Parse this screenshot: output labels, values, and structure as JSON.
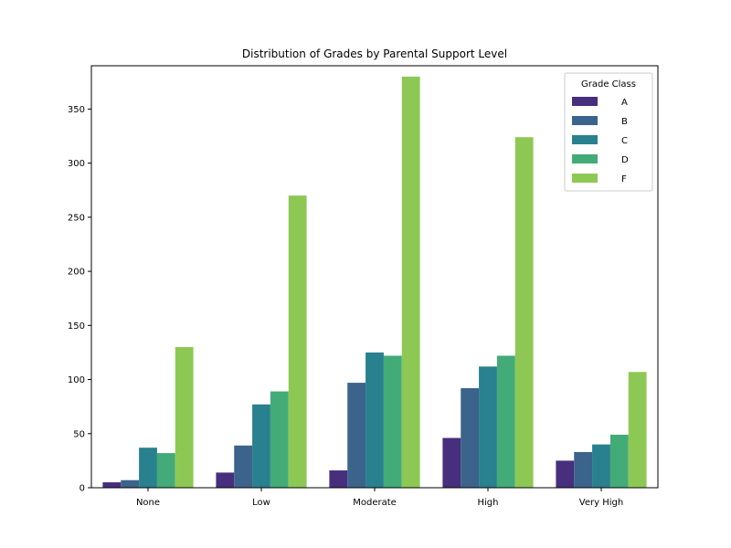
{
  "chart_data": {
    "type": "bar",
    "title": "Distribution of Grades by Parental Support Level",
    "xlabel": "",
    "ylabel": "",
    "categories": [
      "None",
      "Low",
      "Moderate",
      "High",
      "Very High"
    ],
    "ylim": [
      0,
      390
    ],
    "yticks": [
      0,
      50,
      100,
      150,
      200,
      250,
      300,
      350
    ],
    "grid": false,
    "legend": {
      "title": "Grade Class",
      "placement": "top-right"
    },
    "series": [
      {
        "name": "A",
        "color": "#472f7d",
        "values": [
          5,
          14,
          16,
          46,
          25
        ]
      },
      {
        "name": "B",
        "color": "#3b638c",
        "values": [
          7,
          39,
          97,
          92,
          33
        ]
      },
      {
        "name": "C",
        "color": "#29808e",
        "values": [
          37,
          77,
          125,
          112,
          40
        ]
      },
      {
        "name": "D",
        "color": "#43ab77",
        "values": [
          32,
          89,
          122,
          122,
          49
        ]
      },
      {
        "name": "F",
        "color": "#8ec854",
        "values": [
          130,
          270,
          380,
          324,
          107
        ]
      }
    ]
  }
}
